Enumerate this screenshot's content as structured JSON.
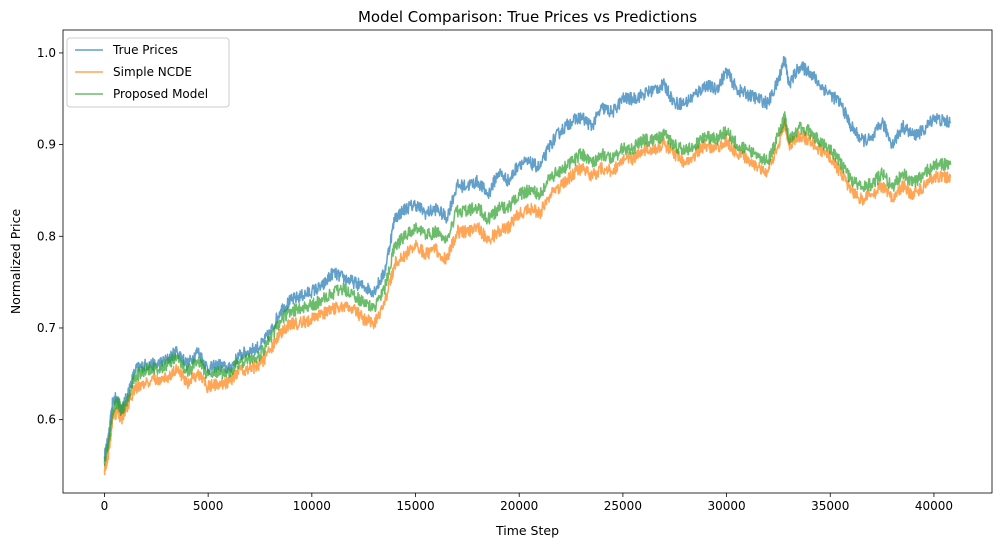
{
  "chart_data": {
    "type": "line",
    "title": "Model Comparison: True Prices vs Predictions",
    "xlabel": "Time Step",
    "ylabel": "Normalized Price",
    "xlim": [
      -2000,
      42800
    ],
    "ylim": [
      0.52,
      1.025
    ],
    "xticks": [
      0,
      5000,
      10000,
      15000,
      20000,
      25000,
      30000,
      35000,
      40000
    ],
    "yticks": [
      0.6,
      0.7,
      0.8,
      0.9,
      1.0
    ],
    "legend_position": "top-left",
    "grid": false,
    "series": [
      {
        "name": "True Prices",
        "color": "#1f77b4",
        "x": [
          0,
          200,
          400,
          600,
          800,
          1000,
          1500,
          2000,
          2500,
          3000,
          3500,
          4000,
          4500,
          5000,
          5500,
          6000,
          6500,
          7000,
          7500,
          8000,
          8500,
          9000,
          9500,
          10000,
          10500,
          11000,
          11500,
          12000,
          12500,
          13000,
          13500,
          14000,
          14500,
          15000,
          15500,
          16000,
          16500,
          17000,
          17500,
          18000,
          18500,
          19000,
          19500,
          20000,
          20500,
          21000,
          21500,
          22000,
          22500,
          23000,
          23500,
          24000,
          24500,
          25000,
          25500,
          26000,
          26500,
          27000,
          27500,
          28000,
          28500,
          29000,
          29500,
          30000,
          30500,
          31000,
          31500,
          32000,
          32500,
          32800,
          33000,
          33500,
          34000,
          34500,
          35000,
          35500,
          36000,
          36500,
          37000,
          37500,
          38000,
          38500,
          39000,
          39500,
          40000,
          40500,
          40800
        ],
        "y": [
          0.56,
          0.58,
          0.62,
          0.625,
          0.61,
          0.62,
          0.655,
          0.66,
          0.66,
          0.665,
          0.675,
          0.66,
          0.675,
          0.655,
          0.66,
          0.655,
          0.67,
          0.675,
          0.68,
          0.695,
          0.72,
          0.73,
          0.735,
          0.74,
          0.745,
          0.76,
          0.755,
          0.75,
          0.745,
          0.74,
          0.76,
          0.82,
          0.83,
          0.835,
          0.825,
          0.83,
          0.82,
          0.855,
          0.855,
          0.86,
          0.845,
          0.87,
          0.86,
          0.88,
          0.88,
          0.875,
          0.9,
          0.915,
          0.925,
          0.93,
          0.92,
          0.94,
          0.935,
          0.95,
          0.95,
          0.955,
          0.96,
          0.965,
          0.945,
          0.945,
          0.955,
          0.965,
          0.96,
          0.98,
          0.96,
          0.955,
          0.95,
          0.945,
          0.97,
          0.995,
          0.965,
          0.985,
          0.98,
          0.965,
          0.955,
          0.945,
          0.92,
          0.905,
          0.905,
          0.925,
          0.9,
          0.92,
          0.91,
          0.915,
          0.93,
          0.925,
          0.925
        ]
      },
      {
        "name": "Simple NCDE",
        "color": "#ff7f0e",
        "x": [
          0,
          200,
          400,
          600,
          800,
          1000,
          1500,
          2000,
          2500,
          3000,
          3500,
          4000,
          4500,
          5000,
          5500,
          6000,
          6500,
          7000,
          7500,
          8000,
          8500,
          9000,
          9500,
          10000,
          10500,
          11000,
          11500,
          12000,
          12500,
          13000,
          13500,
          14000,
          14500,
          15000,
          15500,
          16000,
          16500,
          17000,
          17500,
          18000,
          18500,
          19000,
          19500,
          20000,
          20500,
          21000,
          21500,
          22000,
          22500,
          23000,
          23500,
          24000,
          24500,
          25000,
          25500,
          26000,
          26500,
          27000,
          27500,
          28000,
          28500,
          29000,
          29500,
          30000,
          30500,
          31000,
          31500,
          32000,
          32500,
          32800,
          33000,
          33500,
          34000,
          34500,
          35000,
          35500,
          36000,
          36500,
          37000,
          37500,
          38000,
          38500,
          39000,
          39500,
          40000,
          40500,
          40800
        ],
        "y": [
          0.545,
          0.565,
          0.6,
          0.61,
          0.6,
          0.61,
          0.635,
          0.64,
          0.645,
          0.645,
          0.655,
          0.64,
          0.65,
          0.635,
          0.64,
          0.64,
          0.655,
          0.655,
          0.66,
          0.675,
          0.695,
          0.705,
          0.705,
          0.71,
          0.715,
          0.72,
          0.725,
          0.72,
          0.71,
          0.705,
          0.725,
          0.77,
          0.78,
          0.79,
          0.78,
          0.785,
          0.775,
          0.805,
          0.805,
          0.81,
          0.795,
          0.805,
          0.81,
          0.825,
          0.83,
          0.825,
          0.845,
          0.855,
          0.865,
          0.875,
          0.865,
          0.875,
          0.87,
          0.885,
          0.885,
          0.895,
          0.895,
          0.9,
          0.89,
          0.88,
          0.89,
          0.9,
          0.895,
          0.905,
          0.89,
          0.885,
          0.875,
          0.87,
          0.9,
          0.925,
          0.9,
          0.91,
          0.905,
          0.895,
          0.885,
          0.87,
          0.85,
          0.84,
          0.845,
          0.855,
          0.84,
          0.855,
          0.845,
          0.855,
          0.865,
          0.865,
          0.865
        ]
      },
      {
        "name": "Proposed Model",
        "color": "#2ca02c",
        "x": [
          0,
          200,
          400,
          600,
          800,
          1000,
          1500,
          2000,
          2500,
          3000,
          3500,
          4000,
          4500,
          5000,
          5500,
          6000,
          6500,
          7000,
          7500,
          8000,
          8500,
          9000,
          9500,
          10000,
          10500,
          11000,
          11500,
          12000,
          12500,
          13000,
          13500,
          14000,
          14500,
          15000,
          15500,
          16000,
          16500,
          17000,
          17500,
          18000,
          18500,
          19000,
          19500,
          20000,
          20500,
          21000,
          21500,
          22000,
          22500,
          23000,
          23500,
          24000,
          24500,
          25000,
          25500,
          26000,
          26500,
          27000,
          27500,
          28000,
          28500,
          29000,
          29500,
          30000,
          30500,
          31000,
          31500,
          32000,
          32500,
          32800,
          33000,
          33500,
          34000,
          34500,
          35000,
          35500,
          36000,
          36500,
          37000,
          37500,
          38000,
          38500,
          39000,
          39500,
          40000,
          40500,
          40800
        ],
        "y": [
          0.555,
          0.575,
          0.61,
          0.62,
          0.61,
          0.615,
          0.648,
          0.655,
          0.655,
          0.66,
          0.668,
          0.652,
          0.665,
          0.648,
          0.652,
          0.65,
          0.663,
          0.665,
          0.67,
          0.688,
          0.708,
          0.72,
          0.72,
          0.725,
          0.73,
          0.738,
          0.742,
          0.737,
          0.727,
          0.722,
          0.742,
          0.79,
          0.8,
          0.81,
          0.8,
          0.806,
          0.796,
          0.828,
          0.828,
          0.832,
          0.818,
          0.83,
          0.832,
          0.845,
          0.85,
          0.846,
          0.864,
          0.872,
          0.88,
          0.89,
          0.88,
          0.89,
          0.884,
          0.896,
          0.896,
          0.905,
          0.905,
          0.91,
          0.9,
          0.892,
          0.9,
          0.91,
          0.905,
          0.915,
          0.9,
          0.895,
          0.886,
          0.882,
          0.91,
          0.93,
          0.907,
          0.918,
          0.914,
          0.904,
          0.894,
          0.88,
          0.862,
          0.852,
          0.857,
          0.868,
          0.854,
          0.868,
          0.858,
          0.868,
          0.878,
          0.878,
          0.878
        ]
      }
    ]
  }
}
